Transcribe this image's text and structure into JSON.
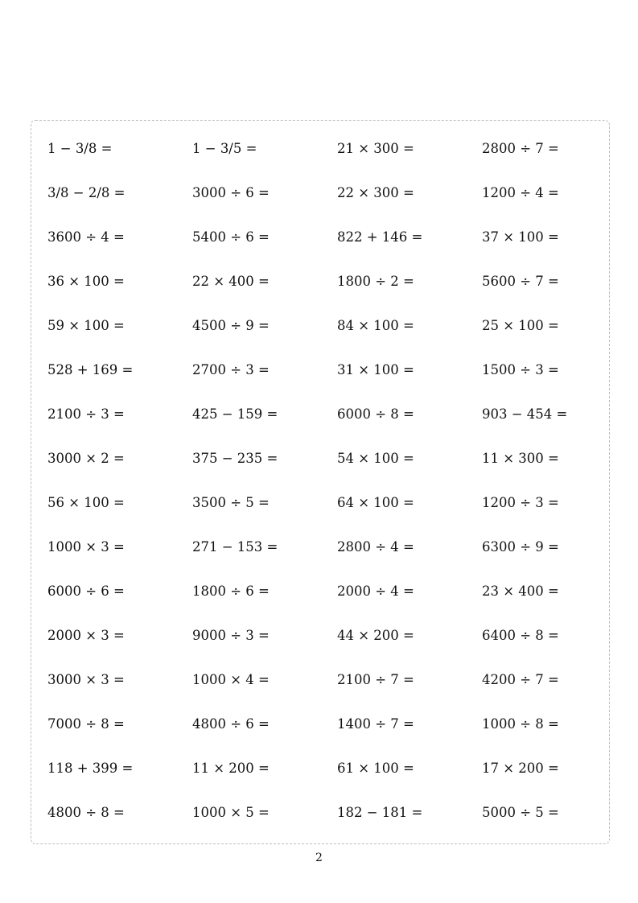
{
  "worksheet": {
    "rows": [
      [
        "1 − 3/8 =",
        "1 − 3/5 =",
        "21 × 300 =",
        "2800 ÷ 7 ="
      ],
      [
        "3/8 − 2/8 =",
        "3000 ÷ 6 =",
        "22 × 300 =",
        "1200 ÷ 4 ="
      ],
      [
        "3600 ÷ 4 =",
        "5400 ÷ 6 =",
        "822 + 146 =",
        "37 × 100 ="
      ],
      [
        "36 × 100 =",
        "22 × 400 =",
        "1800 ÷ 2 =",
        "5600 ÷ 7 ="
      ],
      [
        "59 × 100 =",
        "4500 ÷ 9 =",
        "84 × 100 =",
        "25 × 100 ="
      ],
      [
        "528 + 169 =",
        "2700 ÷ 3 =",
        "31 × 100 =",
        "1500 ÷ 3 ="
      ],
      [
        "2100 ÷ 3 =",
        "425 − 159 =",
        "6000 ÷ 8 =",
        "903 − 454 ="
      ],
      [
        "3000 × 2 =",
        "375 − 235 =",
        "54 × 100 =",
        "11 × 300 ="
      ],
      [
        "56 × 100 =",
        "3500 ÷ 5 =",
        "64 × 100 =",
        "1200 ÷ 3 ="
      ],
      [
        "1000 × 3 =",
        "271 − 153 =",
        "2800 ÷ 4 =",
        "6300 ÷ 9 ="
      ],
      [
        "6000 ÷ 6 =",
        "1800 ÷ 6 =",
        "2000 ÷ 4 =",
        "23 × 400 ="
      ],
      [
        "2000 × 3 =",
        "9000 ÷ 3 =",
        "44 × 200 =",
        "6400 ÷ 8 ="
      ],
      [
        "3000 × 3 =",
        "1000 × 4 =",
        "2100 ÷ 7 =",
        "4200 ÷ 7 ="
      ],
      [
        "7000 ÷ 8 =",
        "4800 ÷ 6 =",
        "1400 ÷ 7 =",
        "1000 ÷ 8 ="
      ],
      [
        "118 + 399 =",
        "11 × 200 =",
        "61 × 100 =",
        "17 × 200 ="
      ],
      [
        "4800 ÷ 8 =",
        "1000 × 5 =",
        "182 − 181 =",
        "5000 ÷ 5 ="
      ]
    ]
  },
  "footer": {
    "page_number": "2"
  }
}
